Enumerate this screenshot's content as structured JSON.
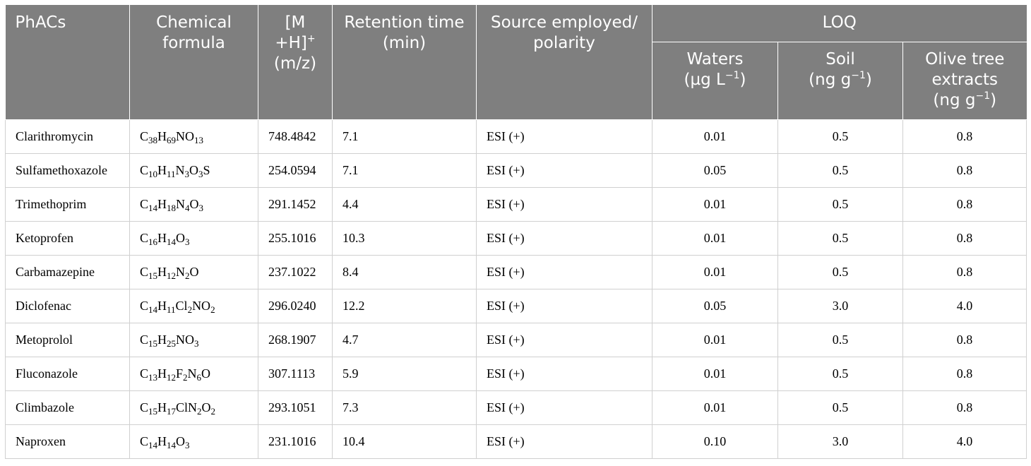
{
  "table": {
    "headers": {
      "phacs": "PhACs",
      "formula": "Chemical formula",
      "mh_prefix": "[M +H]",
      "mh_sup": "+",
      "mh_unit": "(m/z)",
      "retention": "Retention time (min)",
      "source": "Source employed/ polarity",
      "loq": "LOQ",
      "waters": "Waters",
      "waters_unit_pre": "(µg L",
      "waters_unit_sup": "−1",
      "waters_unit_post": ")",
      "soil": "Soil",
      "soil_unit_pre": "(ng g",
      "soil_unit_sup": "−1",
      "soil_unit_post": ")",
      "olive": "Olive tree extracts",
      "olive_unit_pre": "(ng g",
      "olive_unit_sup": "−1",
      "olive_unit_post": ")"
    },
    "rows": [
      {
        "name": "Clarithromycin",
        "formula": [
          [
            "C",
            "38"
          ],
          [
            "H",
            "69"
          ],
          [
            "NO",
            "13"
          ]
        ],
        "mh": "748.4842",
        "rt": "7.1",
        "source": "ESI (+)",
        "waters": "0.01",
        "soil": "0.5",
        "olive": "0.8"
      },
      {
        "name": "Sulfamethoxazole",
        "formula": [
          [
            "C",
            "10"
          ],
          [
            "H",
            "11"
          ],
          [
            "N",
            "3"
          ],
          [
            "O",
            "3"
          ],
          [
            "S",
            ""
          ]
        ],
        "mh": "254.0594",
        "rt": "7.1",
        "source": "ESI (+)",
        "waters": "0.05",
        "soil": "0.5",
        "olive": "0.8"
      },
      {
        "name": "Trimethoprim",
        "formula": [
          [
            "C",
            "14"
          ],
          [
            "H",
            "18"
          ],
          [
            "N",
            "4"
          ],
          [
            "O",
            "3"
          ]
        ],
        "mh": "291.1452",
        "rt": "4.4",
        "source": "ESI (+)",
        "waters": "0.01",
        "soil": "0.5",
        "olive": "0.8"
      },
      {
        "name": "Ketoprofen",
        "formula": [
          [
            "C",
            "16"
          ],
          [
            "H",
            "14"
          ],
          [
            "O",
            "3"
          ]
        ],
        "mh": "255.1016",
        "rt": "10.3",
        "source": "ESI (+)",
        "waters": "0.01",
        "soil": "0.5",
        "olive": "0.8"
      },
      {
        "name": "Carbamazepine",
        "formula": [
          [
            "C",
            "15"
          ],
          [
            "H",
            "12"
          ],
          [
            "N",
            "2"
          ],
          [
            "O",
            ""
          ]
        ],
        "mh": "237.1022",
        "rt": "8.4",
        "source": "ESI (+)",
        "waters": "0.01",
        "soil": "0.5",
        "olive": "0.8"
      },
      {
        "name": "Diclofenac",
        "formula": [
          [
            "C",
            "14"
          ],
          [
            "H",
            "11"
          ],
          [
            "Cl",
            "2"
          ],
          [
            "NO",
            "2"
          ]
        ],
        "mh": "296.0240",
        "rt": "12.2",
        "source": "ESI (+)",
        "waters": "0.05",
        "soil": "3.0",
        "olive": "4.0"
      },
      {
        "name": "Metoprolol",
        "formula": [
          [
            "C",
            "15"
          ],
          [
            "H",
            "25"
          ],
          [
            "NO",
            "3"
          ]
        ],
        "mh": "268.1907",
        "rt": "4.7",
        "source": "ESI (+)",
        "waters": "0.01",
        "soil": "0.5",
        "olive": "0.8"
      },
      {
        "name": "Fluconazole",
        "formula": [
          [
            "C",
            "13"
          ],
          [
            "H",
            "12"
          ],
          [
            "F",
            "2"
          ],
          [
            "N",
            "6"
          ],
          [
            "O",
            ""
          ]
        ],
        "mh": "307.1113",
        "rt": "5.9",
        "source": "ESI (+)",
        "waters": "0.01",
        "soil": "0.5",
        "olive": "0.8"
      },
      {
        "name": "Climbazole",
        "formula": [
          [
            "C",
            "15"
          ],
          [
            "H",
            "17"
          ],
          [
            "ClN",
            "2"
          ],
          [
            "O",
            "2"
          ]
        ],
        "mh": "293.1051",
        "rt": "7.3",
        "source": "ESI (+)",
        "waters": "0.01",
        "soil": "0.5",
        "olive": "0.8"
      },
      {
        "name": "Naproxen",
        "formula": [
          [
            "C",
            "14"
          ],
          [
            "H",
            "14"
          ],
          [
            "O",
            "3"
          ]
        ],
        "mh": "231.1016",
        "rt": "10.4",
        "source": "ESI (+)",
        "waters": "0.10",
        "soil": "3.0",
        "olive": "4.0"
      }
    ]
  }
}
